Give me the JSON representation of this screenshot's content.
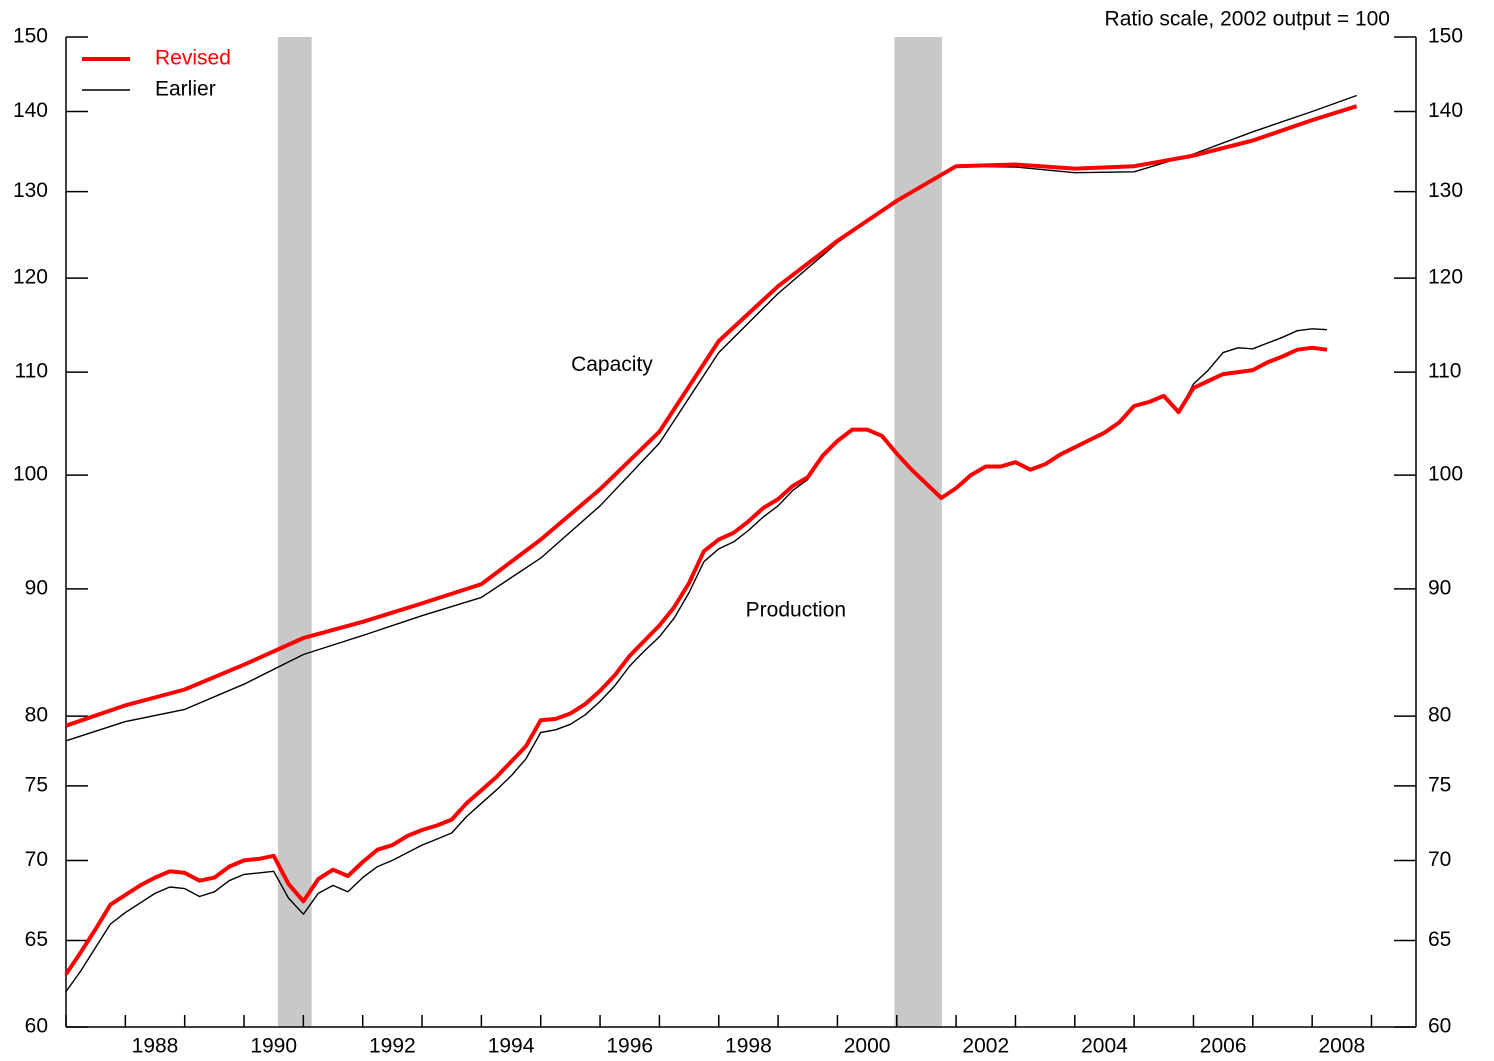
{
  "chart_data": {
    "type": "line",
    "note": "Ratio scale, 2002 output = 100",
    "log_scale": true,
    "xlim": [
      1987,
      2009.75
    ],
    "ylim": [
      60,
      150
    ],
    "xticks": [
      1988,
      1990,
      1992,
      1994,
      1996,
      1998,
      2000,
      2002,
      2004,
      2006,
      2008
    ],
    "xminor_ticks": [
      1987,
      1989,
      1991,
      1993,
      1995,
      1997,
      1999,
      2001,
      2003,
      2005,
      2007,
      2009
    ],
    "yticks": [
      60,
      65,
      70,
      75,
      80,
      90,
      100,
      110,
      120,
      130,
      140,
      150
    ],
    "recessions": [
      [
        1990.57,
        1991.14
      ],
      [
        2000.96,
        2001.76
      ]
    ],
    "recession_color": "#c8c8c8",
    "annotations": [
      {
        "text": "Capacity",
        "x": 1996.2,
        "y": 110.7
      },
      {
        "text": "Production",
        "x": 1999.3,
        "y": 88.2
      }
    ],
    "legend": "top-left",
    "series": [
      {
        "name": "Revised",
        "color": "#ff0000",
        "group": "Capacity",
        "x": [
          1987,
          1988,
          1989,
          1990,
          1991,
          1992,
          1993,
          1994,
          1995,
          1996,
          1997,
          1998,
          1999,
          2000,
          2001,
          2002,
          2003,
          2004,
          2005,
          2006,
          2007,
          2008,
          2008.75
        ],
        "values": [
          79.3,
          80.8,
          82.0,
          83.9,
          86.0,
          87.3,
          88.8,
          90.4,
          94.2,
          98.7,
          104.1,
          113.2,
          119.1,
          124.2,
          128.9,
          133.1,
          133.3,
          132.8,
          133.1,
          134.4,
          136.3,
          138.9,
          140.7
        ]
      },
      {
        "name": "Earlier",
        "color": "#000000",
        "group": "Capacity",
        "x": [
          1987,
          1988,
          1989,
          1990,
          1991,
          1992,
          1993,
          1994,
          1995,
          1996,
          1997,
          1998,
          1999,
          2000,
          2001,
          2002,
          2003,
          2004,
          2005,
          2006,
          2007,
          2008,
          2008.75
        ],
        "values": [
          78.2,
          79.6,
          80.5,
          82.4,
          84.7,
          86.2,
          87.8,
          89.3,
          92.6,
          97.2,
          103.0,
          112.0,
          118.3,
          124.0,
          128.9,
          133.1,
          133.0,
          132.3,
          132.4,
          134.6,
          137.4,
          140.0,
          142.1
        ]
      },
      {
        "name": "Revised",
        "color": "#ff0000",
        "group": "Production",
        "x": [
          1987,
          1987.25,
          1987.5,
          1987.75,
          1988,
          1988.25,
          1988.5,
          1988.75,
          1989,
          1989.25,
          1989.5,
          1989.75,
          1990,
          1990.25,
          1990.5,
          1990.75,
          1991,
          1991.25,
          1991.5,
          1991.75,
          1992,
          1992.25,
          1992.5,
          1992.75,
          1993,
          1993.25,
          1993.5,
          1993.75,
          1994,
          1994.25,
          1994.5,
          1994.75,
          1995,
          1995.25,
          1995.5,
          1995.75,
          1996,
          1996.25,
          1996.5,
          1996.75,
          1997,
          1997.25,
          1997.5,
          1997.75,
          1998,
          1998.25,
          1998.5,
          1998.75,
          1999,
          1999.25,
          1999.5,
          1999.75,
          2000,
          2000.25,
          2000.5,
          2000.75,
          2001,
          2001.25,
          2001.5,
          2001.75,
          2002,
          2002.25,
          2002.5,
          2002.75,
          2003,
          2003.25,
          2003.5,
          2003.75,
          2004,
          2004.25,
          2004.5,
          2004.75,
          2005,
          2005.25,
          2005.5,
          2005.75,
          2006,
          2006.25,
          2006.5,
          2006.75,
          2007,
          2007.25,
          2007.5,
          2007.75,
          2008,
          2008.25
        ],
        "values": [
          63.0,
          64.3,
          65.7,
          67.2,
          67.8,
          68.4,
          68.9,
          69.3,
          69.2,
          68.7,
          68.9,
          69.6,
          70.0,
          70.1,
          70.3,
          68.5,
          67.4,
          68.8,
          69.4,
          69.0,
          69.9,
          70.7,
          71.0,
          71.6,
          72.0,
          72.3,
          72.7,
          73.8,
          74.7,
          75.6,
          76.7,
          77.8,
          79.7,
          79.8,
          80.2,
          80.9,
          81.9,
          83.1,
          84.6,
          85.8,
          87.0,
          88.5,
          90.5,
          93.2,
          94.2,
          94.8,
          95.8,
          97.0,
          97.8,
          99.0,
          99.8,
          101.8,
          103.2,
          104.3,
          104.3,
          103.7,
          102.0,
          100.5,
          99.2,
          97.9,
          98.8,
          100.0,
          100.8,
          100.8,
          101.2,
          100.5,
          101.0,
          101.9,
          102.6,
          103.3,
          104.0,
          105.0,
          106.6,
          107.0,
          107.6,
          106.0,
          108.4,
          109.1,
          109.8,
          110.0,
          110.2,
          111.0,
          111.6,
          112.3,
          112.5,
          112.3
        ]
      },
      {
        "name": "Earlier",
        "color": "#000000",
        "group": "Production",
        "x": [
          1987,
          1987.25,
          1987.5,
          1987.75,
          1988,
          1988.25,
          1988.5,
          1988.75,
          1989,
          1989.25,
          1989.5,
          1989.75,
          1990,
          1990.25,
          1990.5,
          1990.75,
          1991,
          1991.25,
          1991.5,
          1991.75,
          1992,
          1992.25,
          1992.5,
          1992.75,
          1993,
          1993.25,
          1993.5,
          1993.75,
          1994,
          1994.25,
          1994.5,
          1994.75,
          1995,
          1995.25,
          1995.5,
          1995.75,
          1996,
          1996.25,
          1996.5,
          1996.75,
          1997,
          1997.25,
          1997.5,
          1997.75,
          1998,
          1998.25,
          1998.5,
          1998.75,
          1999,
          1999.25,
          1999.5,
          1999.75,
          2000,
          2000.25,
          2000.5,
          2000.75,
          2001,
          2001.25,
          2001.5,
          2001.75,
          2002,
          2002.25,
          2002.5,
          2002.75,
          2003,
          2003.25,
          2003.5,
          2003.75,
          2004,
          2004.25,
          2004.5,
          2004.75,
          2005,
          2005.25,
          2005.5,
          2005.75,
          2006,
          2006.25,
          2006.5,
          2006.75,
          2007,
          2007.25,
          2007.5,
          2007.75,
          2008,
          2008.25
        ],
        "values": [
          62.0,
          63.2,
          64.6,
          66.0,
          66.7,
          67.3,
          67.9,
          68.3,
          68.2,
          67.7,
          68.0,
          68.7,
          69.1,
          69.2,
          69.3,
          67.6,
          66.6,
          67.9,
          68.4,
          68.0,
          68.9,
          69.6,
          70.0,
          70.5,
          71.0,
          71.4,
          71.8,
          72.9,
          73.8,
          74.7,
          75.7,
          76.9,
          78.8,
          79.0,
          79.4,
          80.1,
          81.1,
          82.3,
          83.8,
          85.0,
          86.1,
          87.6,
          89.7,
          92.3,
          93.4,
          94.0,
          95.0,
          96.2,
          97.2,
          98.6,
          99.6,
          101.7,
          103.2,
          104.3,
          104.3,
          103.7,
          102.0,
          100.5,
          99.2,
          97.9,
          98.8,
          100.0,
          100.8,
          100.8,
          101.2,
          100.5,
          101.0,
          101.9,
          102.6,
          103.3,
          104.0,
          105.0,
          106.6,
          107.0,
          107.6,
          106.0,
          108.8,
          110.2,
          112.0,
          112.5,
          112.4,
          113.0,
          113.6,
          114.3,
          114.5,
          114.4
        ]
      }
    ]
  }
}
